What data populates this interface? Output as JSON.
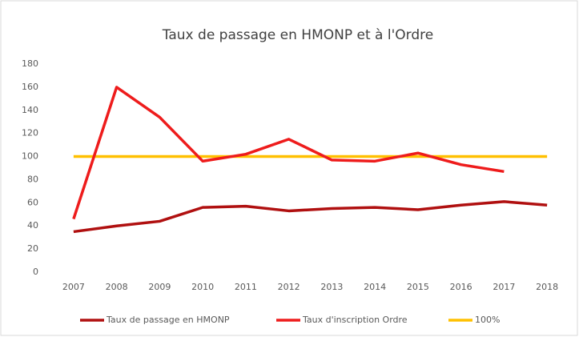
{
  "chart_data": {
    "type": "line",
    "title": "Taux de passage  en HMONP et à l'Ordre",
    "categories": [
      "2007",
      "2008",
      "2009",
      "2010",
      "2011",
      "2012",
      "2013",
      "2014",
      "2015",
      "2016",
      "2017",
      "2018"
    ],
    "series": [
      {
        "name": "Taux de passage en HMONP",
        "color": "#b01010",
        "values": [
          35,
          40,
          44,
          56,
          57,
          53,
          55,
          56,
          54,
          58,
          61,
          58
        ]
      },
      {
        "name": "Taux d'inscription Ordre",
        "color": "#ee1c1c",
        "values": [
          46,
          160,
          134,
          96,
          102,
          115,
          97,
          96,
          103,
          93,
          87,
          null
        ]
      },
      {
        "name": "100%",
        "color": "#ffc000",
        "values": [
          100,
          100,
          100,
          100,
          100,
          100,
          100,
          100,
          100,
          100,
          100,
          100
        ]
      }
    ],
    "ylim": [
      0,
      180
    ],
    "yticks": [
      0,
      20,
      40,
      60,
      80,
      100,
      120,
      140,
      160,
      180
    ],
    "grid": false,
    "legend": "bottom"
  }
}
